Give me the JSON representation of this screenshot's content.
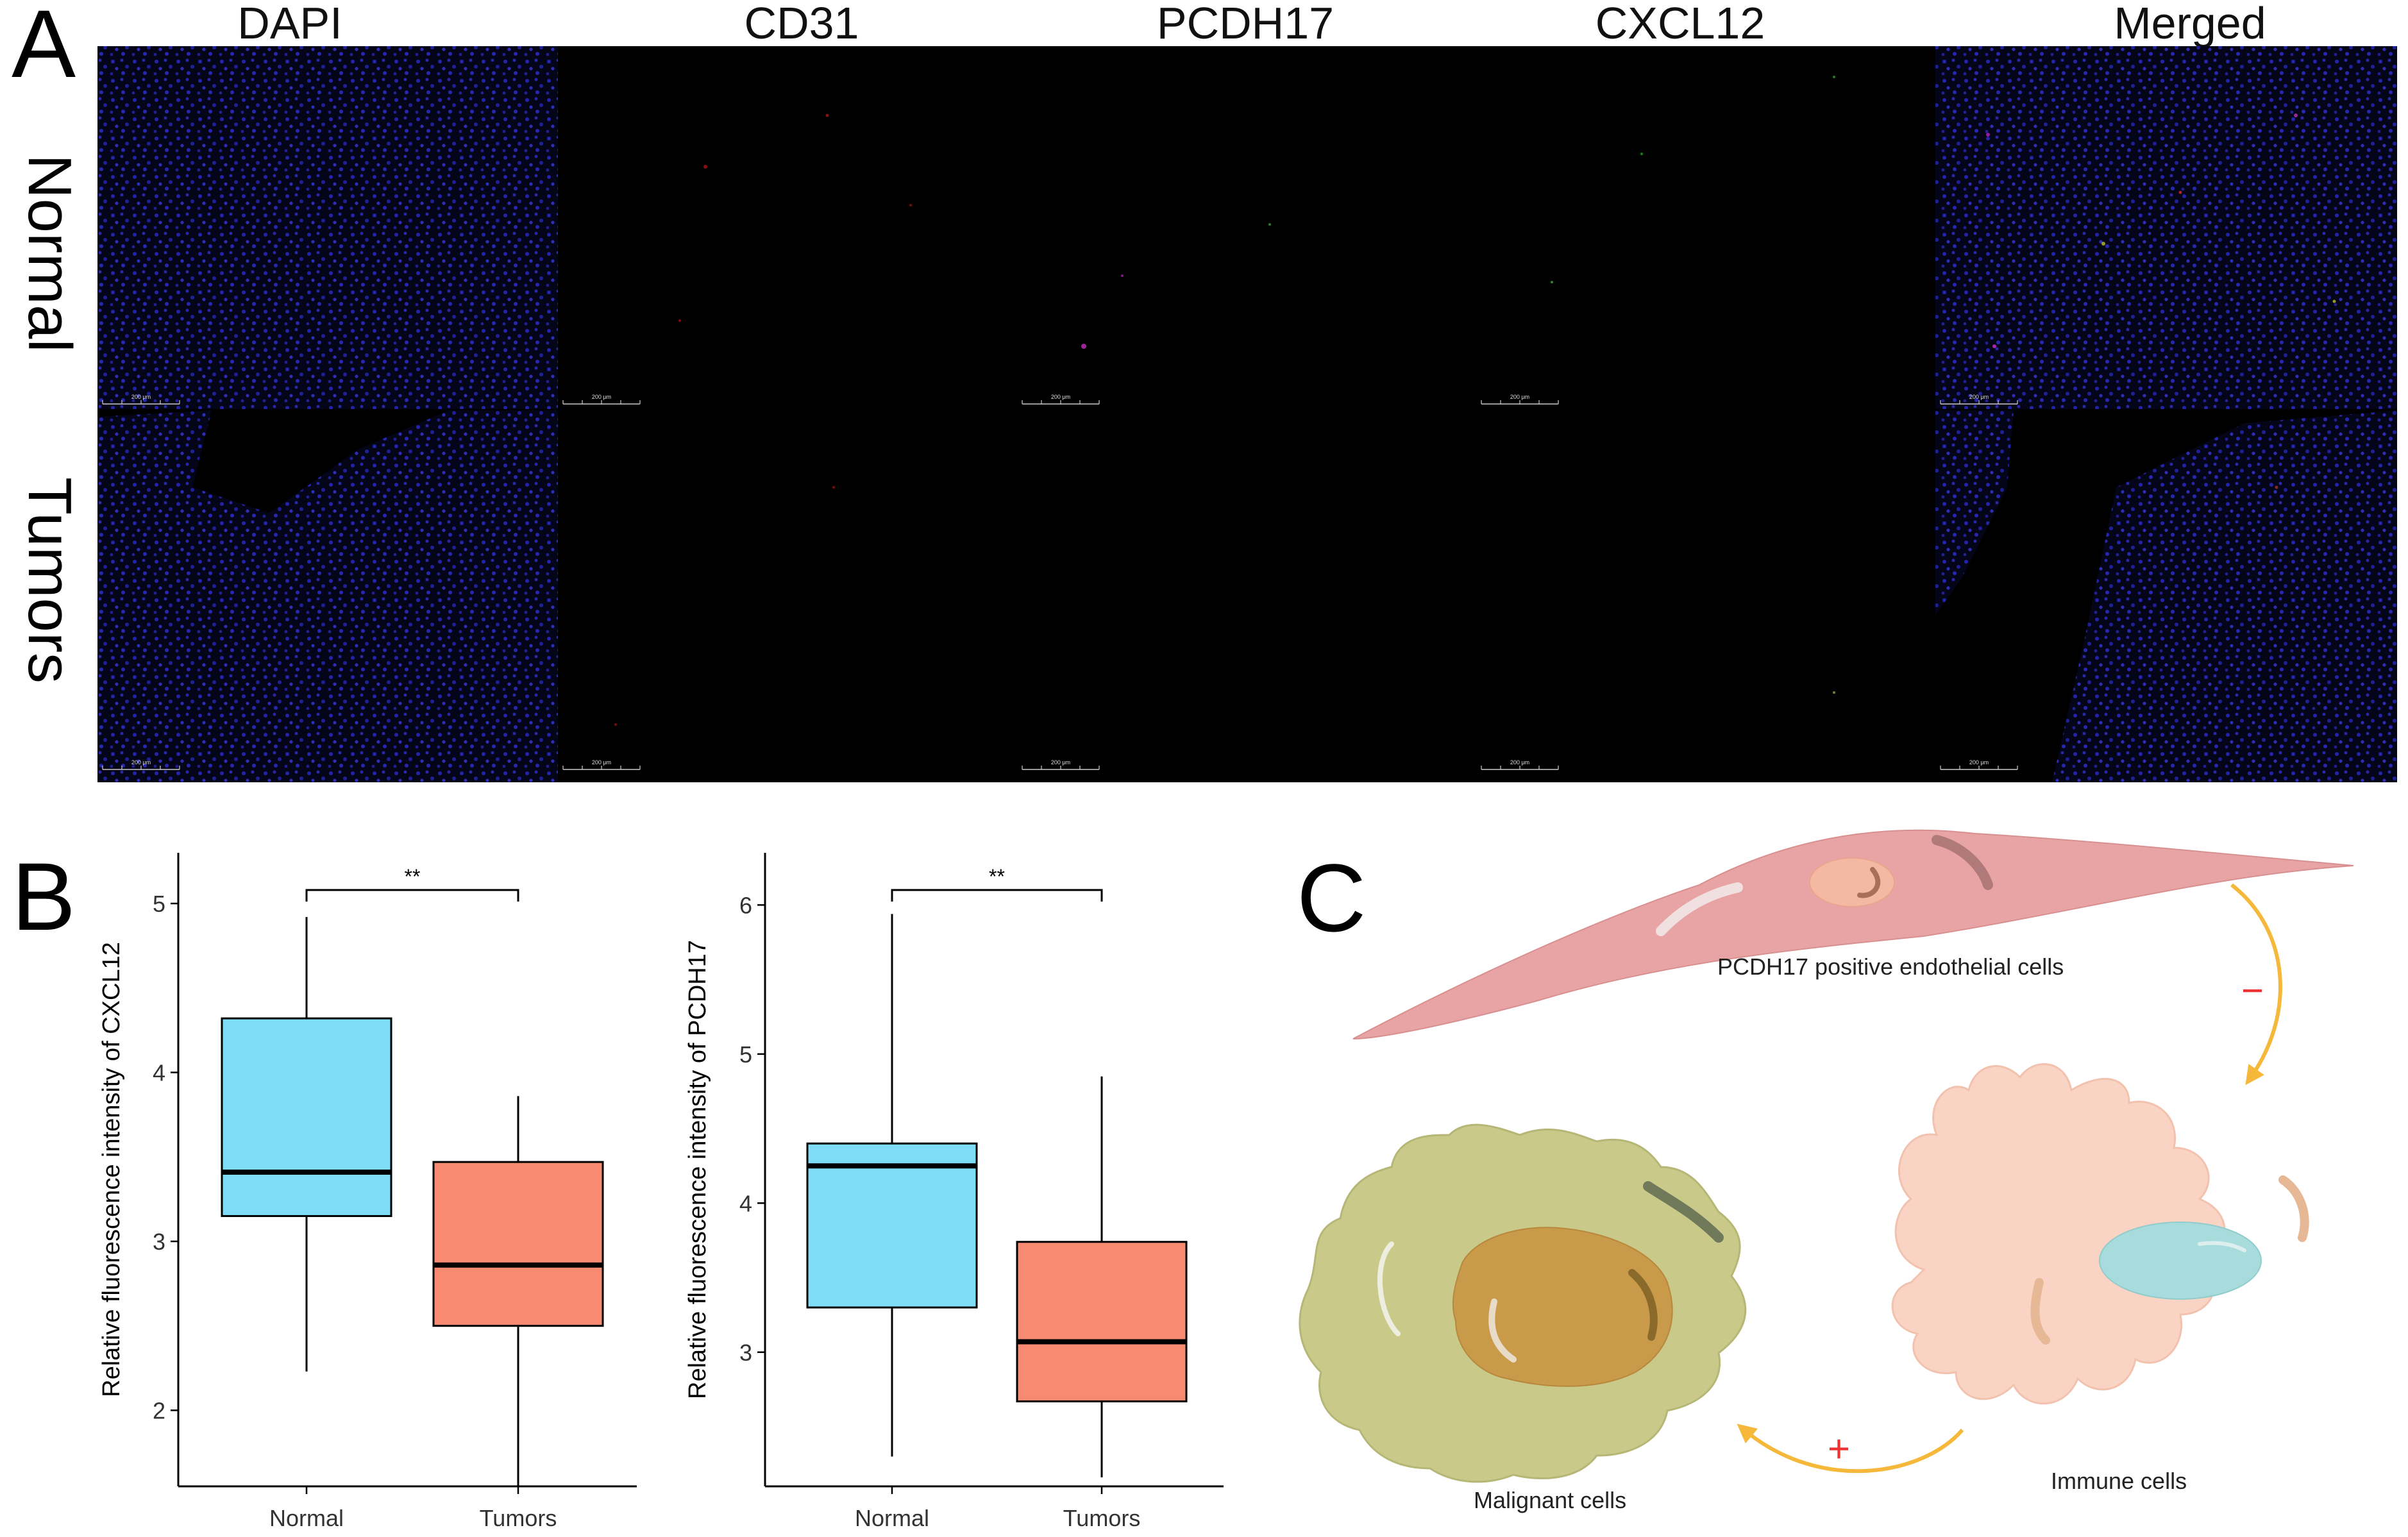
{
  "panel_a": {
    "letter": "A",
    "column_headers": [
      "DAPI",
      "CD31",
      "PCDH17",
      "CXCL12",
      "Merged"
    ],
    "row_labels": [
      "Normal",
      "Tumors"
    ],
    "scale_bar_label": "200 μm"
  },
  "panel_b": {
    "letter": "B"
  },
  "panel_c": {
    "letter": "C",
    "endothelial_label": "PCDH17 positive endothelial cells",
    "immune_label": "Immune cells",
    "malignant_label": "Malignant cells",
    "minus_sign": "−",
    "plus_sign": "+",
    "colors": {
      "endothelial": "#e8a4a4",
      "immune": "#f9d4c4",
      "malignant": "#c9c98a",
      "nucleus_malignant": "#c99a4a",
      "nucleus_immune": "#a8dcdc",
      "arrow": "#f5b83a"
    }
  },
  "chart_data": [
    {
      "type": "box",
      "categories": [
        "Normal",
        "Tumors"
      ],
      "ylabel": "Relative fluorescence intensity of CXCL12",
      "ylim": [
        1.55,
        5.3
      ],
      "yticks": [
        2,
        3,
        4,
        5
      ],
      "significance": "**",
      "colors": [
        "#7fdcf7",
        "#f88a72"
      ],
      "boxes": [
        {
          "name": "Normal",
          "whisker_low": 2.23,
          "q1": 3.15,
          "median": 3.41,
          "q3": 4.32,
          "whisker_high": 4.92
        },
        {
          "name": "Tumors",
          "whisker_low": 1.55,
          "q1": 2.5,
          "median": 2.86,
          "q3": 3.47,
          "whisker_high": 3.86
        }
      ]
    },
    {
      "type": "box",
      "categories": [
        "Normal",
        "Tumors"
      ],
      "ylabel": "Relative fluorescence intensity of PCDH17",
      "ylim": [
        2.1,
        6.35
      ],
      "yticks": [
        3,
        4,
        5,
        6
      ],
      "significance": "**",
      "colors": [
        "#7fdcf7",
        "#f88a72"
      ],
      "boxes": [
        {
          "name": "Normal",
          "whisker_low": 2.3,
          "q1": 3.3,
          "median": 4.25,
          "q3": 4.4,
          "whisker_high": 5.94
        },
        {
          "name": "Tumors",
          "whisker_low": 2.16,
          "q1": 2.67,
          "median": 3.07,
          "q3": 3.74,
          "whisker_high": 4.85
        }
      ]
    }
  ]
}
